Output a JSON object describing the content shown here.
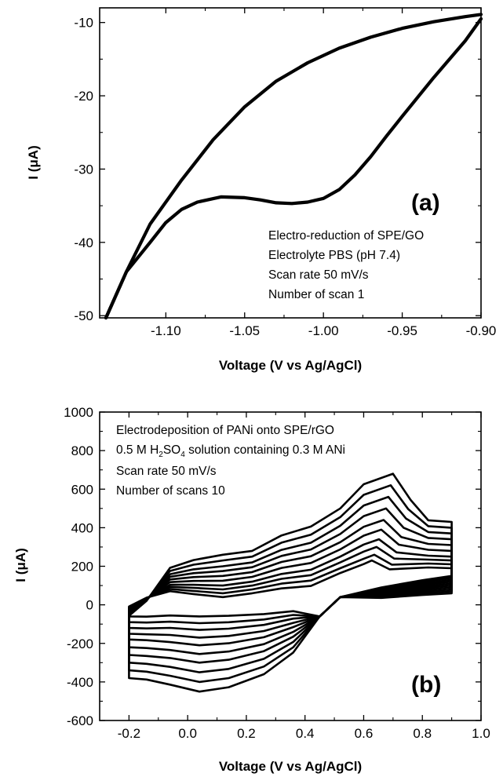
{
  "chart_data": [
    {
      "id": "a",
      "type": "line",
      "panel_label": "(a)",
      "xlabel": "Voltage (V vs Ag/AgCl)",
      "ylabel": "I (μA)",
      "xlim": [
        -1.142,
        -0.9
      ],
      "ylim": [
        -50.3,
        -8.0
      ],
      "xticks": [
        -1.1,
        -1.05,
        -1.0,
        -0.95,
        -0.9
      ],
      "xtick_labels": [
        "-1.10",
        "-1.05",
        "-1.00",
        "-0.95",
        "-0.90"
      ],
      "yticks": [
        -50,
        -40,
        -30,
        -20,
        -10
      ],
      "ytick_labels": [
        "-50",
        "-40",
        "-30",
        "-20",
        "-10"
      ],
      "annotations": [
        "Electro-reduction of SPE/GO",
        "Electrolyte PBS (pH 7.4)",
        "Scan rate 50 mV/s",
        "Number of scan 1"
      ],
      "series": [
        {
          "x": [
            -1.138,
            -1.125,
            -1.11,
            -1.09,
            -1.07,
            -1.05,
            -1.03,
            -1.01,
            -0.99,
            -0.97,
            -0.95,
            -0.93,
            -0.91,
            -0.9
          ],
          "y": [
            -50.3,
            -44.0,
            -37.5,
            -31.5,
            -26.0,
            -21.5,
            -18.0,
            -15.5,
            -13.5,
            -12.0,
            -10.8,
            -9.9,
            -9.2,
            -8.9
          ]
        },
        {
          "x": [
            -0.9,
            -0.91,
            -0.93,
            -0.95,
            -0.96,
            -0.97,
            -0.98,
            -0.99,
            -1.0,
            -1.01,
            -1.02,
            -1.03,
            -1.04,
            -1.05,
            -1.065,
            -1.08,
            -1.09,
            -1.1,
            -1.11,
            -1.125,
            -1.138
          ],
          "y": [
            -9.5,
            -12.5,
            -17.5,
            -22.8,
            -25.5,
            -28.3,
            -30.8,
            -32.8,
            -34.0,
            -34.5,
            -34.7,
            -34.6,
            -34.2,
            -33.9,
            -33.8,
            -34.5,
            -35.5,
            -37.3,
            -40.0,
            -44.0,
            -50.3
          ]
        }
      ]
    },
    {
      "id": "b",
      "type": "line",
      "panel_label": "(b)",
      "xlabel": "Voltage (V vs Ag/AgCl)",
      "ylabel": "I (μA)",
      "xlim": [
        -0.3,
        1.0
      ],
      "ylim": [
        -600,
        1000
      ],
      "xticks": [
        -0.2,
        0.0,
        0.2,
        0.4,
        0.6,
        0.8,
        1.0
      ],
      "xtick_labels": [
        "-0.2",
        "0.0",
        "0.2",
        "0.4",
        "0.6",
        "0.8",
        "1.0"
      ],
      "yticks": [
        -600,
        -400,
        -200,
        0,
        200,
        400,
        600,
        800,
        1000
      ],
      "ytick_labels": [
        "-600",
        "-400",
        "-200",
        "0",
        "200",
        "400",
        "600",
        "800",
        "1000"
      ],
      "annotations": {
        "line1": "Electrodeposition of PANi onto SPE/rGO",
        "line2_pre": "0.5 M H",
        "line2_sub1": "2",
        "line2_mid": "SO",
        "line2_sub2": "4",
        "line2_post": " solution containing 0.3 M ANi",
        "line3": "Scan rate 50 mV/s",
        "line4": "Number of scans 10"
      },
      "scans": [
        {
          "peak": 680,
          "forward_plateau": 240,
          "end_high": 430,
          "return_low": 150,
          "reduction_min": -450,
          "start_low": -380
        },
        {
          "peak": 620,
          "forward_plateau": 210,
          "end_high": 400,
          "return_low": 140,
          "reduction_min": -400,
          "start_low": -340
        },
        {
          "peak": 560,
          "forward_plateau": 180,
          "end_high": 370,
          "return_low": 130,
          "reduction_min": -350,
          "start_low": -300
        },
        {
          "peak": 500,
          "forward_plateau": 155,
          "end_high": 340,
          "return_low": 120,
          "reduction_min": -300,
          "start_low": -260
        },
        {
          "peak": 440,
          "forward_plateau": 130,
          "end_high": 310,
          "return_low": 110,
          "reduction_min": -255,
          "start_low": -220
        },
        {
          "peak": 390,
          "forward_plateau": 105,
          "end_high": 280,
          "return_low": 100,
          "reduction_min": -210,
          "start_low": -180
        },
        {
          "peak": 340,
          "forward_plateau": 80,
          "end_high": 250,
          "return_low": 90,
          "reduction_min": -170,
          "start_low": -150
        },
        {
          "peak": 300,
          "forward_plateau": 60,
          "end_high": 230,
          "return_low": 80,
          "reduction_min": -130,
          "start_low": -120
        },
        {
          "peak": 260,
          "forward_plateau": 40,
          "end_high": 210,
          "return_low": 70,
          "reduction_min": -95,
          "start_low": -90
        },
        {
          "peak": 230,
          "forward_plateau": 20,
          "end_high": 190,
          "return_low": 60,
          "reduction_min": -60,
          "start_low": -60
        }
      ]
    }
  ]
}
